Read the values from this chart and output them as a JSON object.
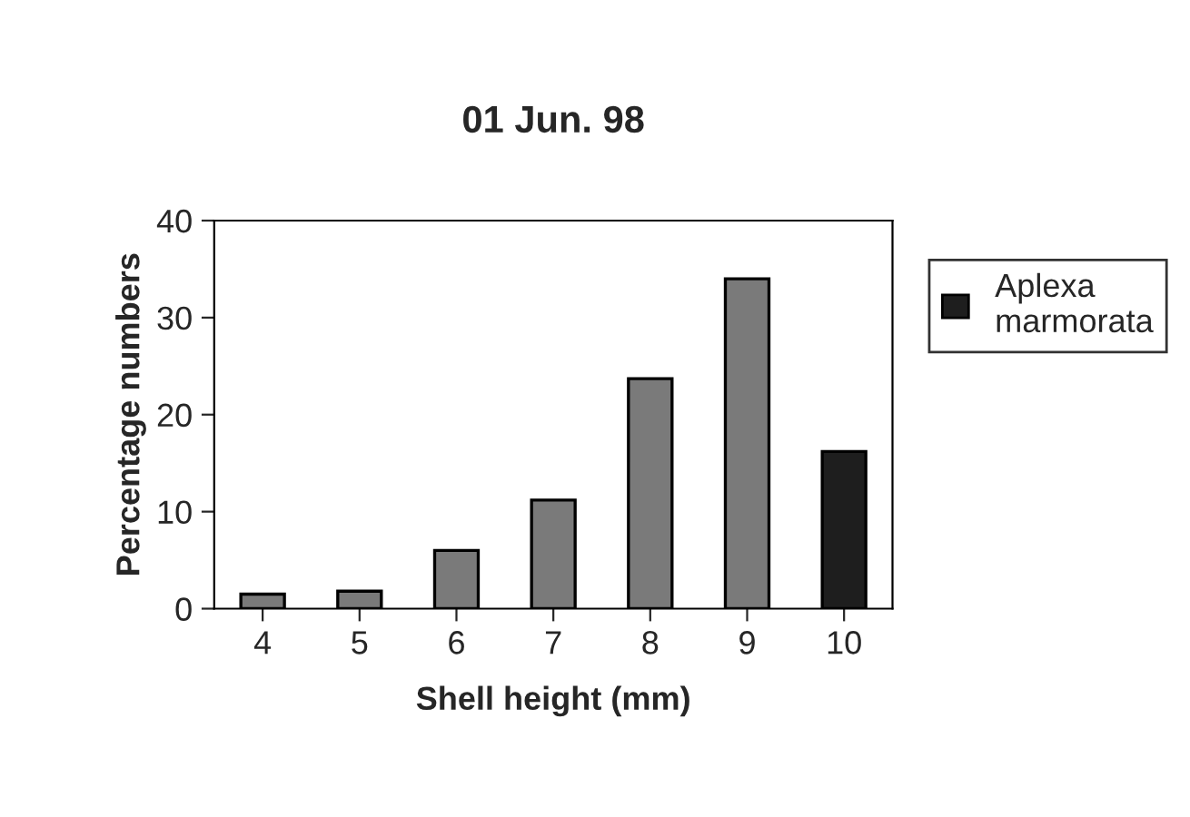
{
  "chart_data": {
    "type": "bar",
    "title": "01 Jun. 98",
    "xlabel": "Shell height (mm)",
    "ylabel": "Percentage numbers",
    "categories": [
      "4",
      "5",
      "6",
      "7",
      "8",
      "9",
      "10"
    ],
    "series": [
      {
        "name": "Aplexa marmorata",
        "color": "#1e1e1e",
        "colors": [
          "#7a7a7a",
          "#7a7a7a",
          "#7a7a7a",
          "#7a7a7a",
          "#7a7a7a",
          "#7a7a7a",
          "#1e1e1e"
        ],
        "values": [
          1.5,
          1.8,
          6.0,
          11.2,
          23.7,
          34.0,
          16.2
        ]
      }
    ],
    "ylim": [
      0,
      40
    ],
    "yticks": [
      0,
      10,
      20,
      30,
      40
    ],
    "grid": false,
    "legend": "right"
  }
}
